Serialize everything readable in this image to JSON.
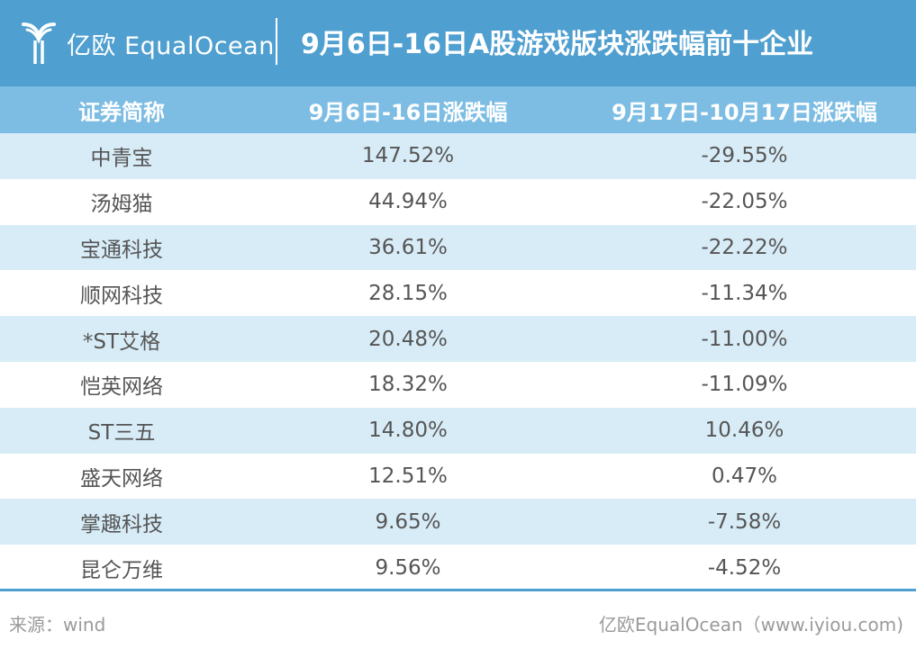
{
  "header": {
    "logo_text": "亿欧 EqualOcean",
    "title": "9月6日-16日A股游戏版块涨跌幅前十企业",
    "colors": {
      "header_bg": "#4f9fd0",
      "column_header_bg": "#7dbde3",
      "stripe": "#d8ecf7"
    }
  },
  "chart_data": {
    "type": "table",
    "columns": [
      "证券简称",
      "9月6日-16日涨跌幅",
      "9月17日-10月17日涨跌幅"
    ],
    "rows": [
      [
        "中青宝",
        "147.52%",
        "-29.55%"
      ],
      [
        "汤姆猫",
        "44.94%",
        "-22.05%"
      ],
      [
        "宝通科技",
        "36.61%",
        "-22.22%"
      ],
      [
        "顺网科技",
        "28.15%",
        "-11.34%"
      ],
      [
        "*ST艾格",
        "20.48%",
        "-11.00%"
      ],
      [
        "恺英网络",
        "18.32%",
        "-11.09%"
      ],
      [
        "ST三五",
        "14.80%",
        "10.46%"
      ],
      [
        "盛天网络",
        "12.51%",
        "0.47%"
      ],
      [
        "掌趣科技",
        "9.65%",
        "-7.58%"
      ],
      [
        "昆仑万维",
        "9.56%",
        "-4.52%"
      ]
    ]
  },
  "footer": {
    "source": "来源：wind",
    "credit": "亿欧EqualOcean（www.iyiou.com)"
  }
}
